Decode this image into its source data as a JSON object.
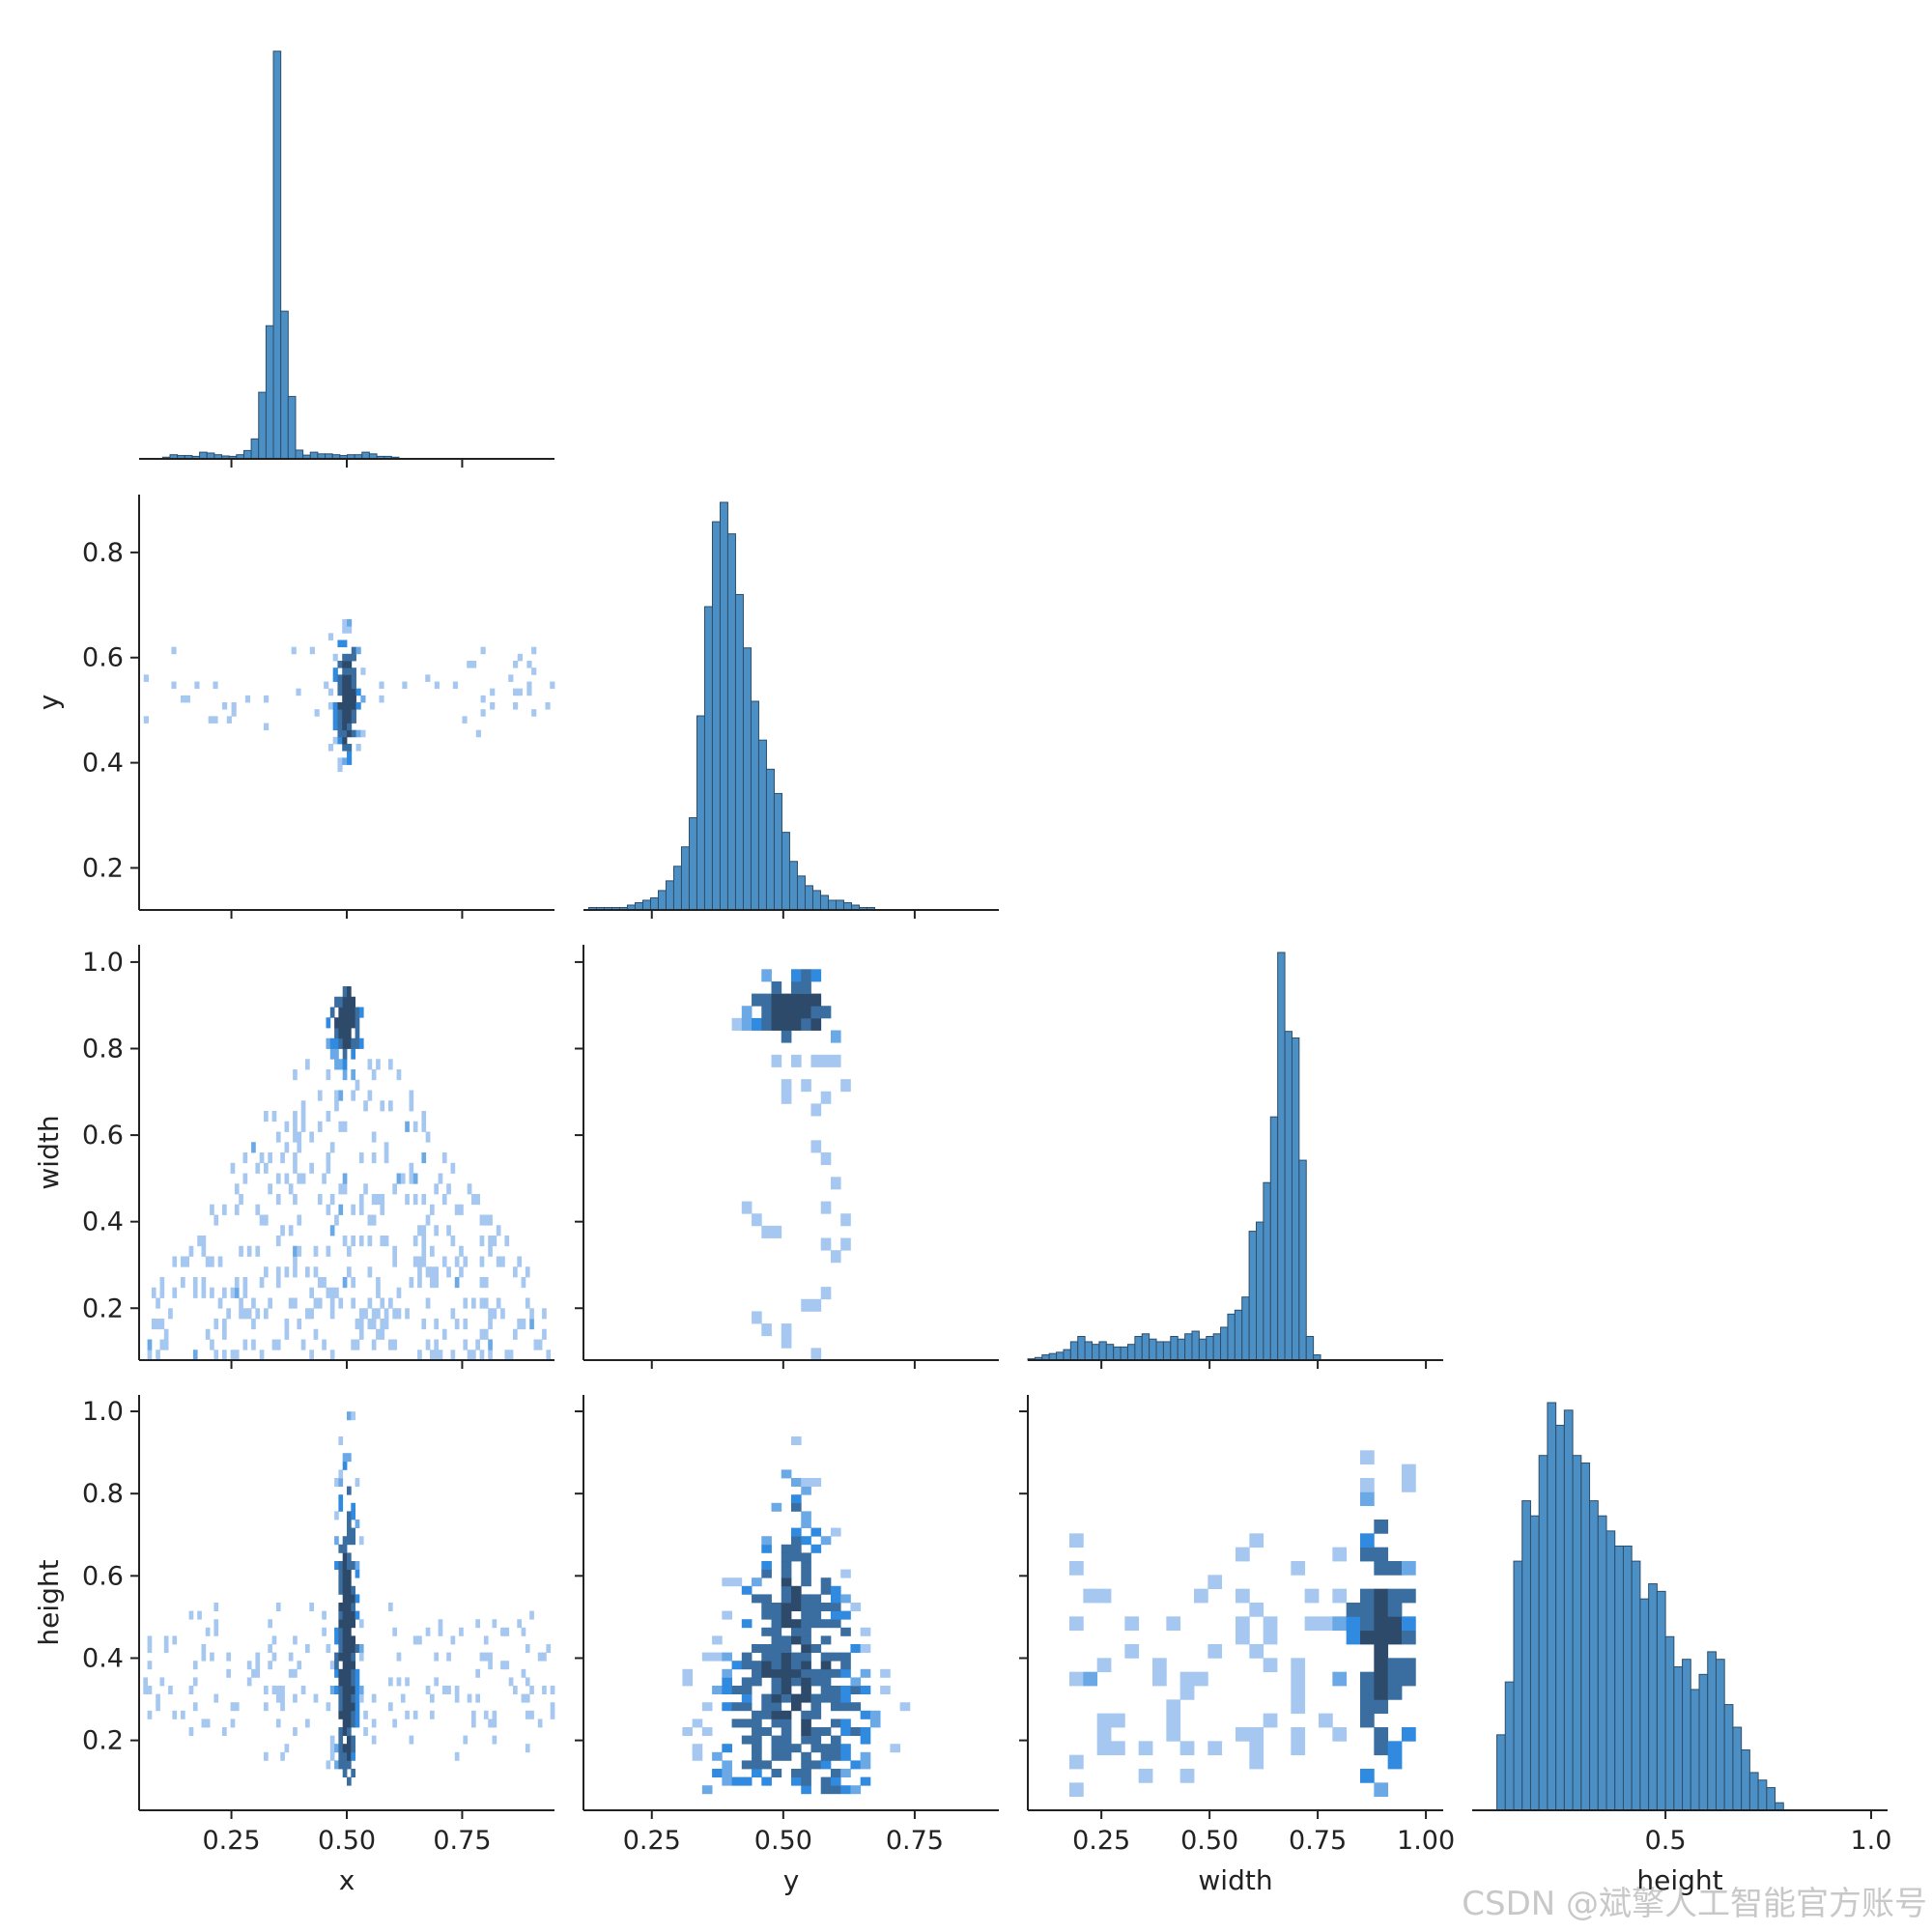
{
  "watermark": "CSDN @斌擎人工智能官方账号",
  "colors": {
    "hist_fill": "#4c8fc4",
    "hist_edge": "#2d4e6b",
    "heat_light": "#a6c8f0",
    "heat_mid": "#2f8ae0",
    "heat_dark": "#2d4a6b"
  },
  "chart_data": {
    "type": "pairplot",
    "variables": [
      "x",
      "y",
      "width",
      "height"
    ],
    "layout": "lower-triangle (corner)",
    "diagonal": "histogram",
    "off_diagonal": "2d-histogram",
    "axes": {
      "x": {
        "range": [
          0.05,
          0.95
        ],
        "ticks": [
          0.25,
          0.5,
          0.75
        ],
        "tick_labels": [
          "0.25",
          "0.50",
          "0.75"
        ],
        "label": "x"
      },
      "y": {
        "range": [
          0.12,
          0.91
        ],
        "ticks": [
          0.25,
          0.5,
          0.75
        ],
        "tick_labels": [
          "0.25",
          "0.50",
          "0.75"
        ],
        "label": "y",
        "vticks": [
          0.2,
          0.4,
          0.6,
          0.8
        ],
        "vtick_labels": [
          "0.2",
          "0.4",
          "0.6",
          "0.8"
        ]
      },
      "width": {
        "range": [
          0.08,
          1.04
        ],
        "ticks": [
          0.25,
          0.5,
          0.75,
          1.0
        ],
        "tick_labels": [
          "0.25",
          "0.50",
          "0.75",
          "1.00"
        ],
        "label": "width",
        "vticks": [
          0.2,
          0.4,
          0.6,
          0.8,
          1.0
        ],
        "vtick_labels": [
          "0.2",
          "0.4",
          "0.6",
          "0.8",
          "1.0"
        ]
      },
      "height": {
        "range": [
          0.03,
          1.04
        ],
        "ticks": [
          0.5,
          1.0
        ],
        "tick_labels": [
          "0.5",
          "1.0"
        ],
        "label": "height",
        "vticks": [
          0.2,
          0.4,
          0.6,
          0.8,
          1.0
        ],
        "vtick_labels": [
          "0.2",
          "0.4",
          "0.6",
          "0.8",
          "1.0"
        ]
      }
    },
    "marginals": {
      "x": {
        "bin_start": 0.085,
        "bin_width": 0.016,
        "counts": [
          1,
          4,
          10,
          8,
          8,
          6,
          16,
          14,
          10,
          7,
          6,
          10,
          20,
          48,
          160,
          320,
          980,
          355,
          150,
          21,
          9,
          16,
          12,
          12,
          10,
          8,
          10,
          10,
          16,
          12,
          6,
          6,
          4,
          1,
          1
        ]
      },
      "y": {
        "bin_start": 0.13,
        "bin_width": 0.0147,
        "counts": [
          1,
          1,
          1,
          1,
          1,
          2,
          3,
          4,
          5,
          8,
          12,
          18,
          26,
          38,
          80,
          125,
          160,
          168,
          155,
          130,
          108,
          86,
          70,
          58,
          48,
          32,
          20,
          14,
          10,
          8,
          6,
          4,
          4,
          3,
          2,
          1,
          1
        ]
      },
      "width": {
        "bin_start": 0.08,
        "bin_width": 0.0165,
        "counts": [
          1,
          2,
          4,
          5,
          6,
          8,
          14,
          18,
          14,
          12,
          14,
          12,
          10,
          10,
          12,
          18,
          20,
          16,
          14,
          14,
          18,
          16,
          20,
          22,
          16,
          18,
          20,
          25,
          35,
          38,
          48,
          98,
          105,
          135,
          185,
          310,
          250,
          245,
          152,
          18,
          4
        ]
      },
      "height": {
        "bin_start": 0.09,
        "bin_width": 0.0205,
        "counts": [
          10,
          17,
          33,
          41,
          39,
          47,
          54,
          51,
          53,
          47,
          46,
          41,
          39,
          37,
          35,
          35,
          33,
          28,
          30,
          29,
          23,
          19,
          20,
          16,
          18,
          21,
          20,
          14,
          11,
          8,
          5,
          4,
          3,
          1
        ]
      }
    },
    "joint": {
      "x-y": {
        "pattern": "dense core near (0.50, 0.52), scattered 0.12–0.92 in x and 0.14–0.89 in y"
      },
      "x-width": {
        "pattern": "triangular; peak at x≈0.50, width≈0.88; width shrinks toward x edges"
      },
      "y-width": {
        "pattern": "dense near y≈0.50–0.55, width 0.82–0.95; sparse spread below"
      },
      "x-height": {
        "pattern": "vertical band at x≈0.50 spanning height 0.1–1.0"
      },
      "y-height": {
        "pattern": "triangular; centered y≈0.52, height 0.1–1.0"
      },
      "width-height": {
        "pattern": "dense columns at width≈0.85–0.95, height 0.3–0.6; diffuse elsewhere"
      }
    }
  }
}
